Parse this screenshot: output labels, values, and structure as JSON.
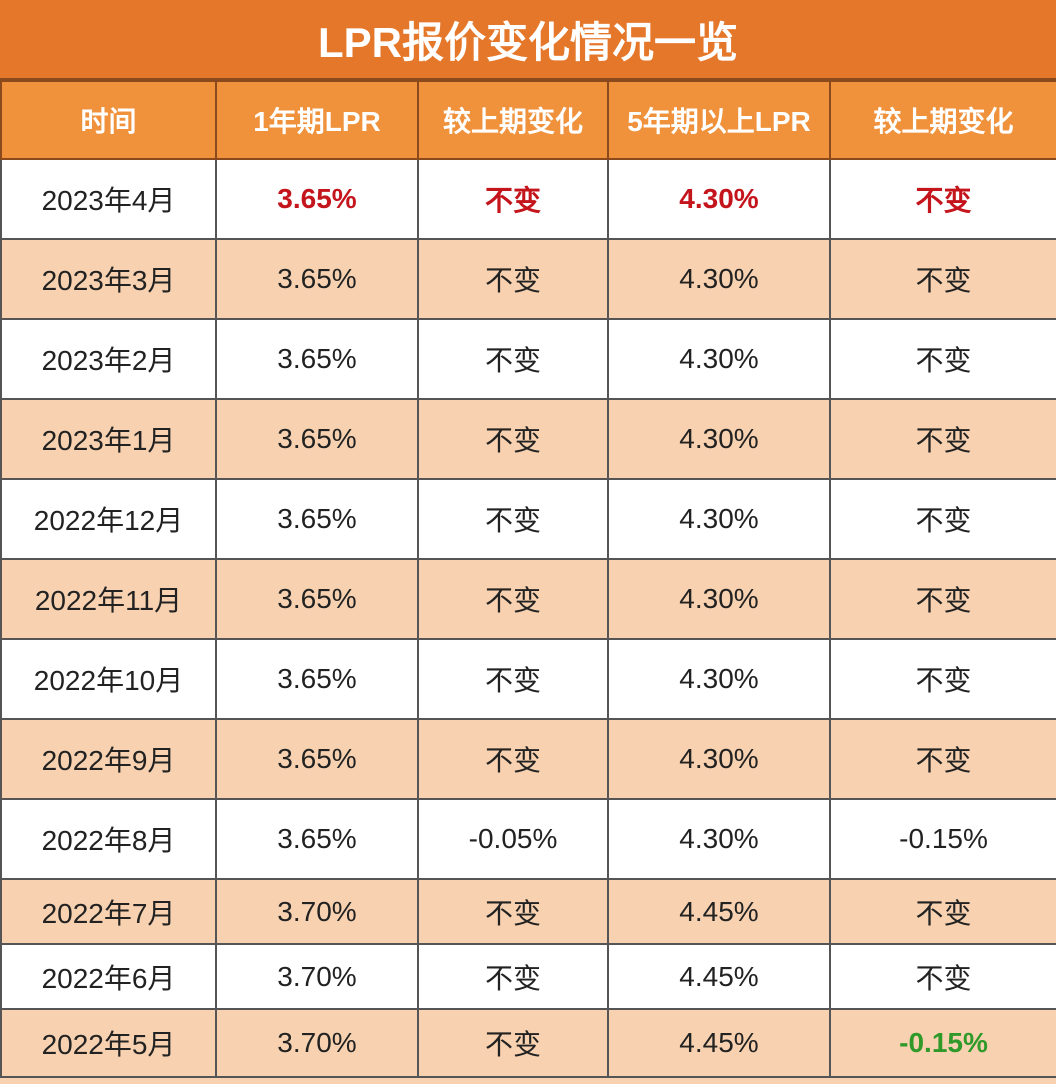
{
  "title": "LPR报价变化情况一览",
  "table": {
    "header": [
      "时间",
      "1年期LPR",
      "较上期变化",
      "5年期以上LPR",
      "较上期变化"
    ],
    "rows": [
      [
        "2023年4月",
        "3.65%",
        "不变",
        "4.30%",
        "不变"
      ],
      [
        "2023年3月",
        "3.65%",
        "不变",
        "4.30%",
        "不变"
      ],
      [
        "2023年2月",
        "3.65%",
        "不变",
        "4.30%",
        "不变"
      ],
      [
        "2023年1月",
        "3.65%",
        "不变",
        "4.30%",
        "不变"
      ],
      [
        "2022年12月",
        "3.65%",
        "不变",
        "4.30%",
        "不变"
      ],
      [
        "2022年11月",
        "3.65%",
        "不变",
        "4.30%",
        "不变"
      ],
      [
        "2022年10月",
        "3.65%",
        "不变",
        "4.30%",
        "不变"
      ],
      [
        "2022年9月",
        "3.65%",
        "不变",
        "4.30%",
        "不变"
      ],
      [
        "2022年8月",
        "3.65%",
        "-0.05%",
        "4.30%",
        "-0.15%"
      ],
      [
        "2022年7月",
        "3.70%",
        "不变",
        "4.45%",
        "不变"
      ],
      [
        "2022年6月",
        "3.70%",
        "不变",
        "4.45%",
        "不变"
      ],
      [
        "2022年5月",
        "3.70%",
        "不变",
        "4.45%",
        "-0.15%"
      ]
    ]
  }
}
